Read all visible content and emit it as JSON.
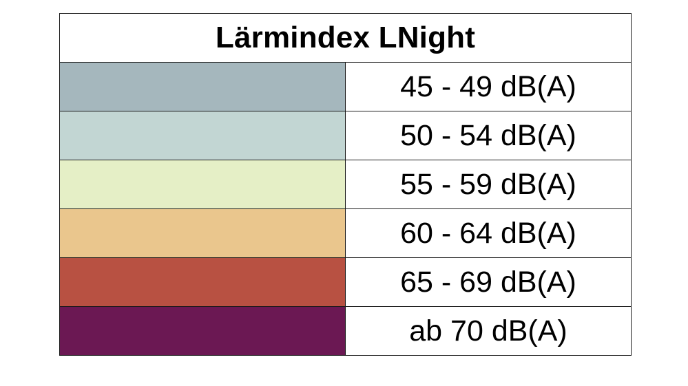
{
  "legend": {
    "title": "Lärmindex LNight",
    "rows": [
      {
        "label": "45 - 49 dB(A)",
        "color": "#a5b7bd"
      },
      {
        "label": "50 - 54 dB(A)",
        "color": "#c2d6d3"
      },
      {
        "label": "55 - 59 dB(A)",
        "color": "#e5efc6"
      },
      {
        "label": "60 - 64 dB(A)",
        "color": "#eac68d"
      },
      {
        "label": "65 - 69 dB(A)",
        "color": "#b85142"
      },
      {
        "label": "ab 70 dB(A)",
        "color": "#6b1853"
      }
    ]
  }
}
